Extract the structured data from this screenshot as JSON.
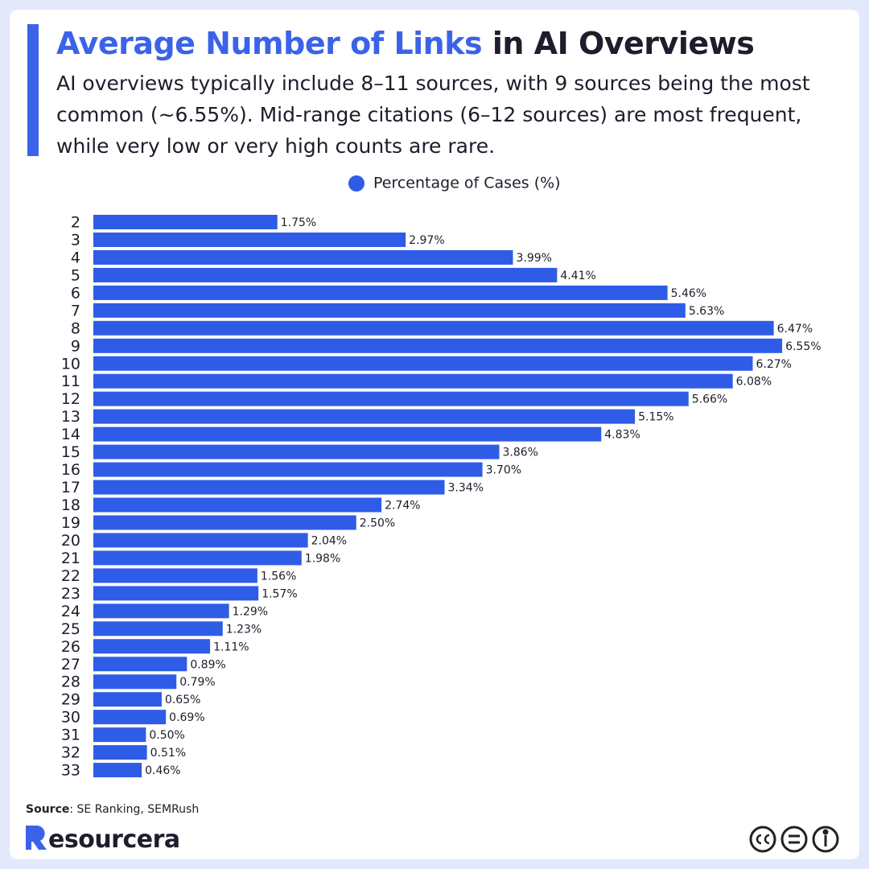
{
  "chart_data": {
    "type": "bar",
    "orientation": "horizontal",
    "title": {
      "highlight": "Average Number of Links",
      "rest": "in AI Overviews"
    },
    "subtitle": "AI overviews typically include 8–11 sources, with 9 sources being the most common (~6.55%). Mid-range citations (6–12 sources) are most frequent, while very low or very high counts are rare.",
    "categories": [
      "2",
      "3",
      "4",
      "5",
      "6",
      "7",
      "8",
      "9",
      "10",
      "11",
      "12",
      "13",
      "14",
      "15",
      "16",
      "17",
      "18",
      "19",
      "20",
      "21",
      "22",
      "23",
      "24",
      "25",
      "26",
      "27",
      "28",
      "29",
      "30",
      "31",
      "32",
      "33"
    ],
    "series": [
      {
        "name": "Percentage of Cases (%)",
        "color": "#2f5ce6",
        "values": [
          1.75,
          2.97,
          3.99,
          4.41,
          5.46,
          5.63,
          6.47,
          6.55,
          6.27,
          6.08,
          5.66,
          5.15,
          4.83,
          3.86,
          3.7,
          3.34,
          2.74,
          2.5,
          2.04,
          1.98,
          1.56,
          1.57,
          1.29,
          1.23,
          1.11,
          0.89,
          0.79,
          0.65,
          0.69,
          0.5,
          0.51,
          0.46
        ],
        "value_labels": [
          "1.75%",
          "2.97%",
          "3.99%",
          "4.41%",
          "5.46%",
          "5.63%",
          "6.47%",
          "6.55%",
          "6.27%",
          "6.08%",
          "5.66%",
          "5.15%",
          "4.83%",
          "3.86%",
          "3.70%",
          "3.34%",
          "2.74%",
          "2.50%",
          "2.04%",
          "1.98%",
          "1.56%",
          "1.57%",
          "1.29%",
          "1.23%",
          "1.11%",
          "0.89%",
          "0.79%",
          "0.65%",
          "0.69%",
          "0.50%",
          "0.51%",
          "0.46%"
        ]
      }
    ],
    "legend": "top",
    "source": {
      "label": "Source",
      "text": ": SE Ranking, SEMRush"
    },
    "brand": "esourcera"
  }
}
